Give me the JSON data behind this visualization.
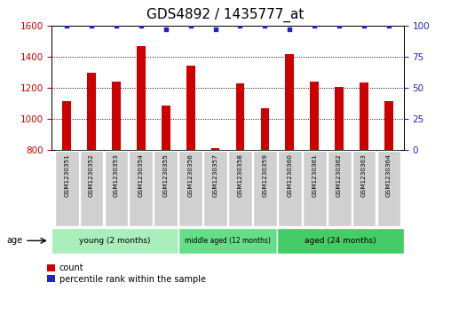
{
  "title": "GDS4892 / 1435777_at",
  "samples": [
    "GSM1230351",
    "GSM1230352",
    "GSM1230353",
    "GSM1230354",
    "GSM1230355",
    "GSM1230356",
    "GSM1230357",
    "GSM1230358",
    "GSM1230359",
    "GSM1230360",
    "GSM1230361",
    "GSM1230362",
    "GSM1230363",
    "GSM1230364"
  ],
  "counts": [
    1115,
    1295,
    1240,
    1470,
    1085,
    1340,
    810,
    1230,
    1070,
    1415,
    1240,
    1205,
    1235,
    1115
  ],
  "percentile_ranks": [
    100,
    100,
    100,
    100,
    97,
    100,
    97,
    100,
    100,
    97,
    100,
    100,
    100,
    100
  ],
  "ylim_left": [
    800,
    1600
  ],
  "ylim_right": [
    0,
    100
  ],
  "yticks_left": [
    800,
    1000,
    1200,
    1400,
    1600
  ],
  "yticks_right": [
    0,
    25,
    50,
    75,
    100
  ],
  "bar_color": "#cc0000",
  "dot_color": "#2222cc",
  "groups": [
    {
      "label": "young (2 months)",
      "start": 0,
      "end": 5
    },
    {
      "label": "middle aged (12 months)",
      "start": 5,
      "end": 9
    },
    {
      "label": "aged (24 months)",
      "start": 9,
      "end": 14
    }
  ],
  "group_colors": [
    "#aaeebb",
    "#66dd88",
    "#44cc66"
  ],
  "age_label": "age",
  "legend_count_label": "count",
  "legend_percentile_label": "percentile rank within the sample",
  "title_fontsize": 11,
  "tick_fontsize": 7.5,
  "bar_width": 0.35,
  "left_color": "#cc0000",
  "right_color": "#2222cc"
}
